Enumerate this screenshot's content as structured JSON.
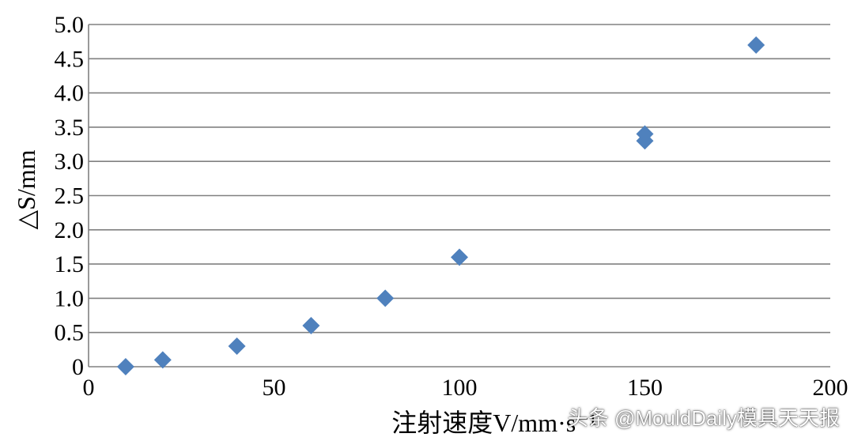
{
  "chart_data": {
    "type": "scatter",
    "xlabel": "注射速度V/mm·s⁻¹",
    "ylabel": "△S/mm",
    "xlim": [
      0,
      200
    ],
    "ylim": [
      0,
      5.0
    ],
    "x_ticks": [
      0,
      50,
      100,
      150,
      200
    ],
    "x_tick_labels": [
      "0",
      "50",
      "100",
      "150",
      "200"
    ],
    "y_ticks": [
      0,
      0.5,
      1.0,
      1.5,
      2.0,
      2.5,
      3.0,
      3.5,
      4.0,
      4.5,
      5.0
    ],
    "y_tick_labels": [
      "0",
      "0.5",
      "1.0",
      "1.5",
      "2.0",
      "2.5",
      "3.0",
      "3.5",
      "4.0",
      "4.5",
      "5.0"
    ],
    "grid": "horizontal",
    "marker": "diamond",
    "marker_color": "#4f81bd",
    "points": [
      {
        "x": 10,
        "y": 0.0
      },
      {
        "x": 20,
        "y": 0.1
      },
      {
        "x": 40,
        "y": 0.3
      },
      {
        "x": 60,
        "y": 0.6
      },
      {
        "x": 80,
        "y": 1.0
      },
      {
        "x": 100,
        "y": 1.6
      },
      {
        "x": 150,
        "y": 3.3
      },
      {
        "x": 150,
        "y": 3.4
      },
      {
        "x": 180,
        "y": 4.7
      }
    ]
  },
  "watermark": "头条 @MouldDaily模具天天报"
}
